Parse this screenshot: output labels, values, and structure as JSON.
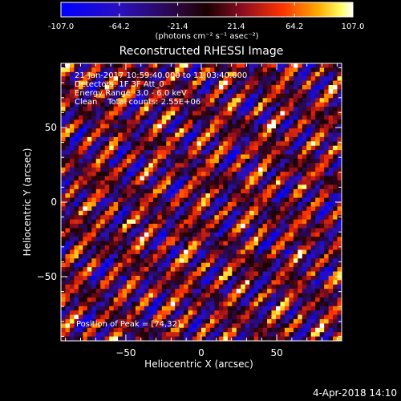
{
  "chart_data": {
    "type": "heatmap",
    "title": "Reconstructed RHESSI Image",
    "xlabel": "Heliocentric X (arcsec)",
    "ylabel": "Heliocentric Y (arcsec)",
    "xlim": [
      -93,
      93
    ],
    "ylim": [
      -93,
      93
    ],
    "xticks": [
      -50,
      0,
      50
    ],
    "yticks": [
      -50,
      0,
      50
    ],
    "colorbar": {
      "min": -107.0,
      "max": 107.0,
      "ticks": [
        "-107.0",
        "-64.2",
        "-21.4",
        "21.4",
        "64.2",
        "107.0"
      ],
      "unit_label": "(photons cm⁻² s⁻¹ asec⁻²)"
    },
    "info_lines": [
      "21-Jan-2017 10:59:40.000 to 11:03:40.000",
      "Detectors: 1F 3F  Att_0",
      "Energy Range: 3.0 - 6.0 keV",
      "Clean    Total counts: 2.55E+06"
    ],
    "peak_label": "Position of Peak = [74,32]",
    "grid": false,
    "footer_date": "4-Apr-2018 14:10",
    "colors": {
      "low": "#0000ff",
      "mid": "#000000",
      "high": "#ffffff",
      "accent": "#ff3300"
    }
  }
}
